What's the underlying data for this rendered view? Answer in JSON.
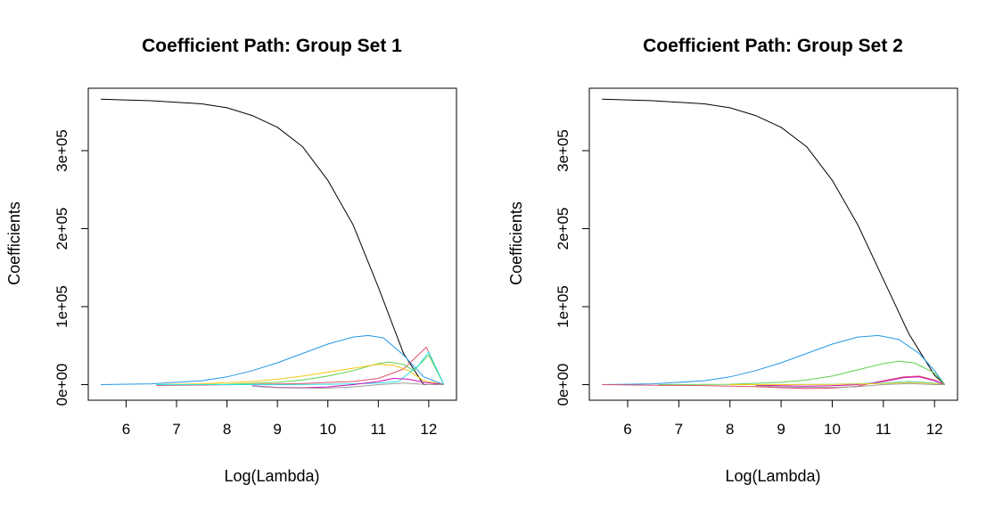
{
  "chart_data": [
    {
      "type": "line",
      "title": "Coefficient Path: Group Set 1",
      "xlabel": "Log(Lambda)",
      "ylabel": "Coefficients",
      "xlim": [
        5.25,
        12.55
      ],
      "ylim": [
        -20000,
        380000
      ],
      "xticks": [
        6,
        7,
        8,
        9,
        10,
        11,
        12
      ],
      "xtick_labels": [
        "6",
        "7",
        "8",
        "9",
        "10",
        "11",
        "12"
      ],
      "yticks": [
        0,
        100000,
        200000,
        300000
      ],
      "ytick_labels": [
        "0e+00",
        "1e+05",
        "2e+05",
        "3e+05"
      ],
      "grid": false,
      "legend": "none",
      "series": [
        {
          "color": "#000000",
          "x": [
            5.5,
            6.5,
            7.5,
            8.0,
            8.5,
            9.0,
            9.5,
            10.0,
            10.5,
            11.0,
            11.5,
            11.9,
            12.3
          ],
          "values": [
            366000,
            364000,
            360000,
            355000,
            345000,
            330000,
            305000,
            262000,
            205000,
            125000,
            40000,
            0,
            0
          ]
        },
        {
          "color": "#2297E6",
          "x": [
            5.5,
            6.5,
            7.5,
            8.0,
            8.5,
            9.0,
            9.5,
            10.0,
            10.5,
            10.8,
            11.1,
            11.5,
            11.9,
            12.3
          ],
          "values": [
            0,
            1000,
            5000,
            10000,
            18000,
            28000,
            40000,
            52000,
            61000,
            63000,
            60000,
            38000,
            10000,
            0
          ]
        },
        {
          "color": "#DF536B",
          "x": [
            6.6,
            7.5,
            8.5,
            9.5,
            10.5,
            11.0,
            11.5,
            11.95,
            12.3
          ],
          "values": [
            -1000,
            -600,
            200,
            1500,
            4000,
            8000,
            20000,
            48000,
            0
          ]
        },
        {
          "color": "#61D04F",
          "x": [
            6.6,
            8.0,
            9.0,
            9.5,
            10.0,
            10.5,
            11.0,
            11.2,
            11.5,
            11.7,
            12.0,
            12.3
          ],
          "values": [
            0,
            500,
            3000,
            6000,
            11000,
            18000,
            27000,
            29000,
            26000,
            18000,
            38000,
            0
          ]
        },
        {
          "color": "#F5C710",
          "x": [
            6.6,
            7.5,
            8.5,
            9.0,
            9.5,
            10.0,
            10.5,
            11.0,
            11.3,
            11.6,
            11.9,
            12.3
          ],
          "values": [
            0,
            1000,
            4000,
            7000,
            11000,
            16000,
            21000,
            26000,
            25000,
            18000,
            5000,
            0
          ]
        },
        {
          "color": "#28E2E5",
          "x": [
            6.6,
            8.0,
            9.0,
            10.0,
            10.5,
            11.0,
            11.4,
            11.8,
            12.0,
            12.3
          ],
          "values": [
            0,
            0,
            0,
            500,
            1000,
            2000,
            4000,
            25000,
            42000,
            0
          ]
        },
        {
          "color": "#CD0BBC",
          "x": [
            8.5,
            9.0,
            9.5,
            10.0,
            10.5,
            11.0,
            11.3,
            11.6,
            11.9,
            12.3
          ],
          "values": [
            -1500,
            -3500,
            -4000,
            -3000,
            0,
            4000,
            8000,
            7000,
            3000,
            0
          ]
        },
        {
          "color": "#9E9E9E",
          "x": [
            8.5,
            9.0,
            9.5,
            10.0,
            10.5,
            11.0,
            11.5,
            12.0,
            12.3
          ],
          "values": [
            -2000,
            -4000,
            -4500,
            -4500,
            -3000,
            0,
            2000,
            0,
            0
          ]
        }
      ]
    },
    {
      "type": "line",
      "title": "Coefficient Path: Group Set 2",
      "xlabel": "Log(Lambda)",
      "ylabel": "Coefficients",
      "xlim": [
        5.25,
        12.45
      ],
      "ylim": [
        -20000,
        380000
      ],
      "xticks": [
        6,
        7,
        8,
        9,
        10,
        11,
        12
      ],
      "xtick_labels": [
        "6",
        "7",
        "8",
        "9",
        "10",
        "11",
        "12"
      ],
      "yticks": [
        0,
        100000,
        200000,
        300000
      ],
      "ytick_labels": [
        "0e+00",
        "1e+05",
        "2e+05",
        "3e+05"
      ],
      "grid": false,
      "legend": "none",
      "series": [
        {
          "color": "#000000",
          "x": [
            5.5,
            6.5,
            7.5,
            8.0,
            8.5,
            9.0,
            9.5,
            10.0,
            10.5,
            11.0,
            11.5,
            12.0,
            12.2
          ],
          "values": [
            366000,
            364000,
            360000,
            355000,
            345000,
            330000,
            305000,
            262000,
            205000,
            135000,
            65000,
            12000,
            0
          ]
        },
        {
          "color": "#2297E6",
          "x": [
            5.5,
            6.5,
            7.5,
            8.0,
            8.5,
            9.0,
            9.5,
            10.0,
            10.5,
            10.9,
            11.3,
            11.7,
            12.0,
            12.2
          ],
          "values": [
            0,
            1000,
            5000,
            10000,
            18000,
            28000,
            40000,
            52000,
            61000,
            63000,
            58000,
            40000,
            18000,
            0
          ]
        },
        {
          "color": "#61D04F",
          "x": [
            6.6,
            8.0,
            9.0,
            9.5,
            10.0,
            10.5,
            11.0,
            11.3,
            11.6,
            12.0,
            12.2
          ],
          "values": [
            0,
            500,
            3000,
            6000,
            11000,
            19000,
            27000,
            30000,
            28000,
            15000,
            0
          ]
        },
        {
          "color": "#DF536B",
          "x": [
            5.5,
            6.6,
            7.5,
            8.5,
            9.0,
            9.5,
            10.0,
            10.5,
            11.0,
            11.4,
            11.7,
            12.0,
            12.2
          ],
          "values": [
            0,
            -800,
            -1200,
            -2500,
            -4000,
            -5000,
            -4500,
            -2000,
            5000,
            10000,
            11000,
            6000,
            0
          ]
        },
        {
          "color": "#CD0BBC",
          "x": [
            8.5,
            9.0,
            9.5,
            10.0,
            10.5,
            11.0,
            11.4,
            11.7,
            12.0,
            12.2
          ],
          "values": [
            -1000,
            -1500,
            -2000,
            -1500,
            0,
            4000,
            9000,
            10000,
            5000,
            0
          ]
        },
        {
          "color": "#28E2E5",
          "x": [
            8.0,
            9.0,
            10.0,
            11.0,
            11.5,
            12.0,
            12.2
          ],
          "values": [
            0,
            0,
            500,
            2000,
            4000,
            2000,
            0
          ]
        },
        {
          "color": "#F5C710",
          "x": [
            8.0,
            9.0,
            10.0,
            11.0,
            11.5,
            12.0,
            12.2
          ],
          "values": [
            0,
            0,
            300,
            1500,
            3000,
            1500,
            0
          ]
        },
        {
          "color": "#9E9E9E",
          "x": [
            8.5,
            9.0,
            9.5,
            10.0,
            10.5,
            11.0,
            11.5,
            12.0,
            12.2
          ],
          "values": [
            -1500,
            -3000,
            -3500,
            -3500,
            -2500,
            0,
            1500,
            0,
            0
          ]
        }
      ]
    }
  ]
}
